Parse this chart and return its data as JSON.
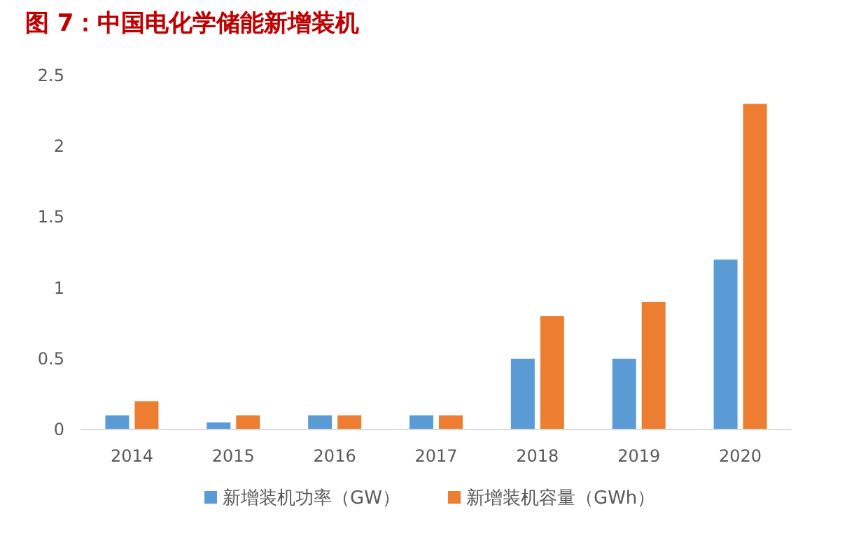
{
  "chart_data": {
    "type": "bar",
    "title": "图 7：中国电化学储能新增装机",
    "categories": [
      "2014",
      "2015",
      "2016",
      "2017",
      "2018",
      "2019",
      "2020"
    ],
    "series": [
      {
        "name": "新增装机功率（GW）",
        "color": "#5b9bd5",
        "values": [
          0.1,
          0.05,
          0.1,
          0.1,
          0.5,
          0.5,
          1.2
        ]
      },
      {
        "name": "新增装机容量（GWh）",
        "color": "#ed7d31",
        "values": [
          0.2,
          0.1,
          0.1,
          0.1,
          0.8,
          0.9,
          2.3
        ]
      }
    ],
    "ylim": [
      0,
      2.5
    ],
    "yticks": [
      0,
      0.5,
      1,
      1.5,
      2,
      2.5
    ],
    "legend": "bottom"
  }
}
